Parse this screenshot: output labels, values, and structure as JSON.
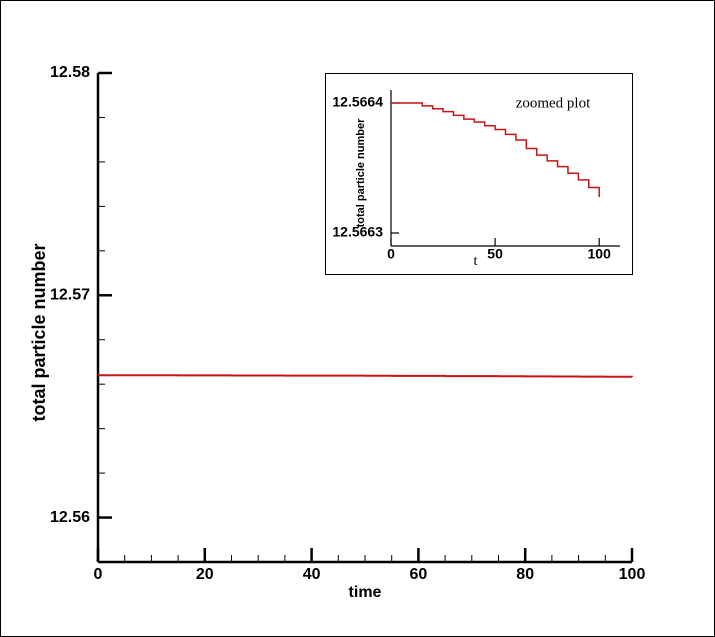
{
  "chart_data": [
    {
      "type": "line",
      "step": true,
      "ylabel": "total particle number",
      "xlabel": "time",
      "x": [
        0,
        5,
        10,
        15,
        20,
        25,
        30,
        35,
        40,
        45,
        50,
        55,
        60,
        65,
        70,
        75,
        80,
        85,
        90,
        95,
        100
      ],
      "values": [
        12.5664,
        12.5664,
        12.5664,
        12.5663978,
        12.5663956,
        12.5663934,
        12.5663905,
        12.5663876,
        12.5663854,
        12.5663825,
        12.5663796,
        12.5663759,
        12.5663715,
        12.566365,
        12.5663599,
        12.5663555,
        12.5663511,
        12.566346,
        12.5663409,
        12.566335,
        12.5663277
      ],
      "color": "#c81414",
      "xlim": [
        0,
        100
      ],
      "xticks": [
        0,
        20,
        40,
        60,
        80,
        100
      ],
      "xticks_minor": [
        5,
        10,
        15,
        25,
        30,
        35,
        45,
        50,
        55,
        65,
        70,
        75,
        85,
        90,
        95
      ],
      "ylim": [
        12.558,
        12.58
      ],
      "yticks": [
        12.56,
        12.57,
        12.58
      ],
      "yticks_minor": [
        12.558,
        12.562,
        12.564,
        12.566,
        12.568,
        12.572,
        12.574,
        12.576,
        12.578
      ]
    },
    {
      "type": "line",
      "step": true,
      "ylabel": "total particle number",
      "xlabel": "t",
      "annotation": "zoomed plot",
      "x": [
        0,
        5,
        10,
        15,
        20,
        25,
        30,
        35,
        40,
        45,
        50,
        55,
        60,
        65,
        70,
        75,
        80,
        85,
        90,
        95,
        100
      ],
      "values": [
        12.5664,
        12.5664,
        12.5664,
        12.5663978,
        12.5663956,
        12.5663934,
        12.5663905,
        12.5663876,
        12.5663854,
        12.5663825,
        12.5663796,
        12.5663759,
        12.5663715,
        12.566365,
        12.5663599,
        12.5663555,
        12.5663511,
        12.566346,
        12.5663409,
        12.566335,
        12.5663277
      ],
      "color": "#c81414",
      "xlim": [
        0,
        110
      ],
      "xticks": [
        0,
        50,
        100
      ],
      "ylim": [
        12.56629,
        12.56641
      ],
      "yticks": [
        12.5663,
        12.5664
      ]
    }
  ]
}
